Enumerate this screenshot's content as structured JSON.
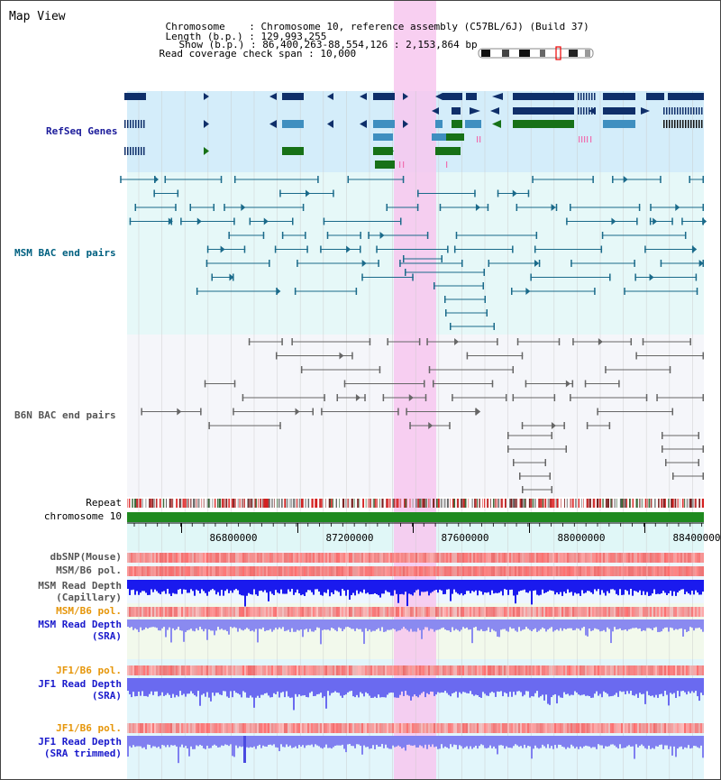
{
  "header": {
    "title": "Map View",
    "chromosome_key": "Chromosome",
    "chromosome_value": "Chromosome 10, reference assembly (C57BL/6J) (Build 37)",
    "length_key": "Length (b.p.)",
    "length_value": "129,993,255",
    "show_key": "Show (b.p.)",
    "show_value": "86,400,263-88,554,126 : 2,153,864 bp",
    "coverage_key": "Read coverage check span",
    "coverage_value": "10,000"
  },
  "tracks": {
    "refseq": "RefSeq Genes",
    "msm_bac": "MSM BAC end pairs",
    "b6n_bac": "B6N BAC end pairs",
    "repeat": "Repeat",
    "chromosome": "chromosome 10",
    "dbsnp": "dbSNP(Mouse)",
    "msm_b6_pol_1": "MSM/B6 pol.",
    "msm_depth_cap_1": "MSM Read Depth",
    "msm_depth_cap_2": "(Capillary)",
    "msm_b6_pol_2": "MSM/B6 pol.",
    "msm_depth_sra_1": "MSM Read Depth",
    "msm_depth_sra_2": "(SRA)",
    "jf1_b6_pol_1": "JF1/B6 pol.",
    "jf1_depth_sra_1": "JF1 Read Depth",
    "jf1_depth_sra_2": "(SRA)",
    "jf1_b6_pol_2": "JF1/B6 pol.",
    "jf1_depth_trim_1": "JF1 Read Depth",
    "jf1_depth_trim_2": "(SRA trimmed)"
  },
  "axis": {
    "ticks": [
      "86800000",
      "87200000",
      "87600000",
      "88000000",
      "88400000"
    ]
  },
  "colors": {
    "refseq_label": "#1a1a9a",
    "msm_label": "#006080",
    "b6n_label": "#555555",
    "pol_orange": "#e6960a",
    "depth_blue": "#1a1acc",
    "highlight": "#f7c7ee",
    "chromosome_bar": "#1f8a1f"
  },
  "icons": {
    "chromosome_ideogram": "chromosome-ideogram-icon"
  }
}
